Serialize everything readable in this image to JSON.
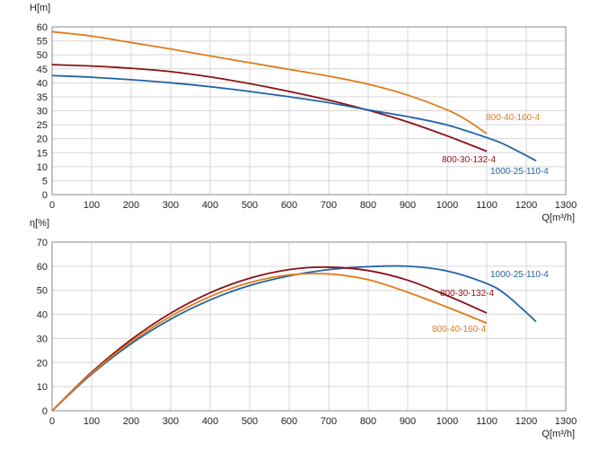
{
  "chart_data": [
    {
      "type": "line",
      "ylabel": "H[m]",
      "xlabel": "Q[m³/h]",
      "xlim": [
        0,
        1300
      ],
      "ylim": [
        0,
        60
      ],
      "xticks": [
        0,
        100,
        200,
        300,
        400,
        500,
        600,
        700,
        800,
        900,
        1000,
        1100,
        1200,
        1300
      ],
      "yticks": [
        0,
        5,
        10,
        15,
        20,
        25,
        30,
        35,
        40,
        45,
        50,
        55,
        60
      ],
      "grid": true,
      "series": [
        {
          "name": "800-40-160-4",
          "color": "#e07b1a",
          "x": [
            0,
            100,
            200,
            300,
            400,
            500,
            600,
            700,
            800,
            900,
            1000,
            1050,
            1100
          ],
          "y": [
            58.3,
            56.7,
            54.4,
            52.1,
            49.6,
            47.2,
            44.8,
            42.4,
            39.5,
            35.6,
            30.3,
            26.6,
            21.8
          ]
        },
        {
          "name": "800-30-132-4",
          "color": "#8b1016",
          "x": [
            0,
            100,
            200,
            300,
            400,
            500,
            600,
            700,
            800,
            900,
            1000,
            1100
          ],
          "y": [
            46.5,
            46.0,
            45.2,
            44.0,
            42.1,
            39.7,
            36.9,
            33.8,
            30.2,
            26.0,
            21.0,
            15.5
          ]
        },
        {
          "name": "1000-25-110-4",
          "color": "#2163a8",
          "x": [
            0,
            100,
            200,
            300,
            400,
            500,
            600,
            700,
            800,
            900,
            1000,
            1100,
            1150,
            1225
          ],
          "y": [
            42.6,
            42.0,
            41.1,
            40.0,
            38.6,
            36.9,
            35.0,
            32.9,
            30.3,
            27.9,
            24.9,
            20.4,
            17.6,
            12.1
          ]
        }
      ]
    },
    {
      "type": "line",
      "ylabel": "η[%]",
      "xlabel": "Q[m³/h]",
      "xlim": [
        0,
        1300
      ],
      "ylim": [
        0,
        70
      ],
      "xticks": [
        0,
        100,
        200,
        300,
        400,
        500,
        600,
        700,
        800,
        900,
        1000,
        1100,
        1200,
        1300
      ],
      "yticks": [
        0,
        10,
        20,
        30,
        40,
        50,
        60,
        70
      ],
      "grid": true,
      "series": [
        {
          "name": "1000-25-110-4",
          "color": "#2163a8",
          "x": [
            0,
            100,
            200,
            300,
            400,
            500,
            600,
            700,
            800,
            900,
            1000,
            1100,
            1150,
            1225
          ],
          "y": [
            0,
            15.2,
            27.8,
            38.0,
            46.0,
            52.0,
            56.0,
            58.6,
            59.8,
            60.0,
            58.0,
            52.8,
            48.0,
            37.0
          ]
        },
        {
          "name": "800-30-132-4",
          "color": "#8b1016",
          "x": [
            0,
            100,
            200,
            300,
            400,
            500,
            600,
            700,
            800,
            900,
            1000,
            1100
          ],
          "y": [
            0,
            16.0,
            29.5,
            40.5,
            49.0,
            55.0,
            58.6,
            59.6,
            58.2,
            54.2,
            47.8,
            40.6
          ]
        },
        {
          "name": "800-40-160-4",
          "color": "#e07b1a",
          "x": [
            0,
            100,
            200,
            300,
            400,
            500,
            600,
            700,
            800,
            900,
            1000,
            1100
          ],
          "y": [
            0,
            15.6,
            28.6,
            39.2,
            47.4,
            53.2,
            56.4,
            56.8,
            54.4,
            49.2,
            43.0,
            36.4
          ]
        }
      ]
    }
  ]
}
